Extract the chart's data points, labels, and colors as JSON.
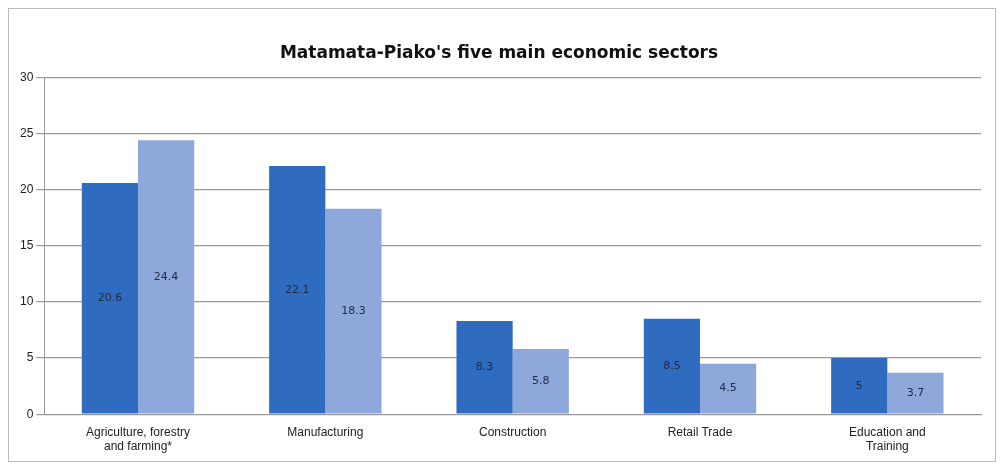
{
  "chart_data": {
    "type": "bar",
    "title": "Matamata-Piako's five main economic sectors",
    "categories": [
      "Agriculture, forestry\nand farming*",
      "Manufacturing",
      "Construction",
      "Retail Trade",
      "Education and\nTraining"
    ],
    "series": [
      {
        "color": "#2f6bbf",
        "values": [
          20.6,
          22.1,
          8.3,
          8.5,
          5.0
        ]
      },
      {
        "color": "#8ea8db",
        "values": [
          24.4,
          18.3,
          5.8,
          4.5,
          3.7
        ]
      }
    ],
    "ylim": [
      0,
      30
    ],
    "yticks": [
      0,
      5,
      10,
      15,
      20,
      25,
      30
    ],
    "grid": "y",
    "legend": false,
    "data_labels": true
  }
}
